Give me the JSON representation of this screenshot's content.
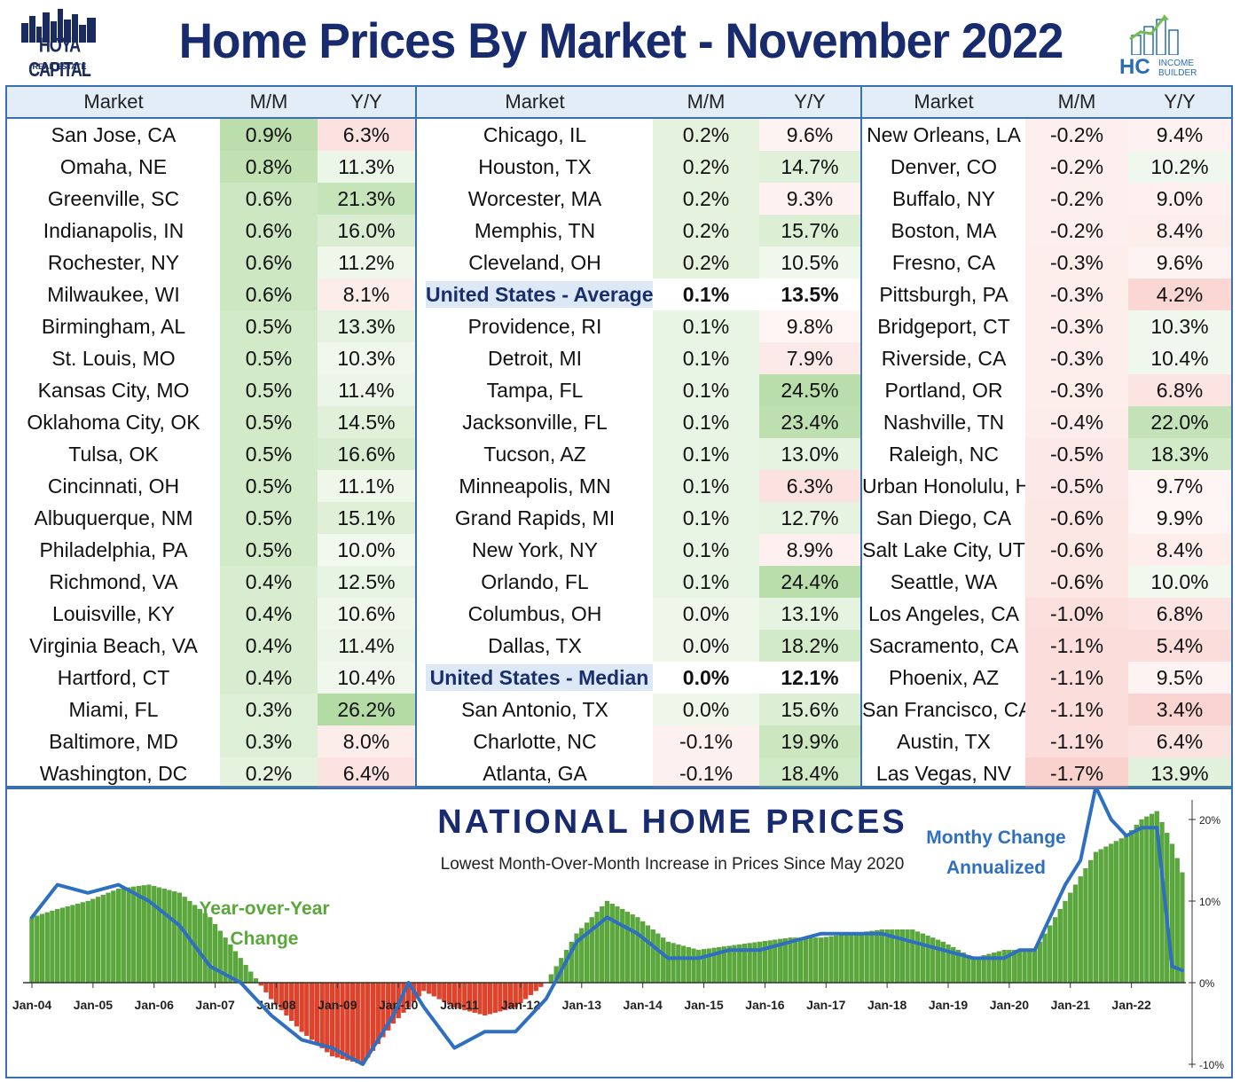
{
  "header": {
    "title": "Home Prices By Market - November 2022",
    "left_logo": {
      "name": "HOYA CAPITAL",
      "sub": "REAL ESTATE"
    },
    "right_logo": {
      "mark": "HC",
      "text_line1": "INCOME",
      "text_line2": "BUILDER"
    }
  },
  "colors": {
    "title": "#172b6e",
    "border": "#3a6fb0",
    "header_bg": "#e3edf8",
    "positive": "#5aa83a",
    "negative": "#e0422a",
    "line": "#2e6fc1"
  },
  "table": {
    "columns": [
      "Market",
      "M/M",
      "Y/Y"
    ],
    "groups": [
      {
        "rows": [
          {
            "market": "San Jose, CA",
            "mm": "0.9%",
            "yy": "6.3%"
          },
          {
            "market": "Omaha, NE",
            "mm": "0.8%",
            "yy": "11.3%"
          },
          {
            "market": "Greenville, SC",
            "mm": "0.6%",
            "yy": "21.3%"
          },
          {
            "market": "Indianapolis, IN",
            "mm": "0.6%",
            "yy": "16.0%"
          },
          {
            "market": "Rochester, NY",
            "mm": "0.6%",
            "yy": "11.2%"
          },
          {
            "market": "Milwaukee, WI",
            "mm": "0.6%",
            "yy": "8.1%"
          },
          {
            "market": "Birmingham, AL",
            "mm": "0.5%",
            "yy": "13.3%"
          },
          {
            "market": "St. Louis, MO",
            "mm": "0.5%",
            "yy": "10.3%"
          },
          {
            "market": "Kansas City, MO",
            "mm": "0.5%",
            "yy": "11.4%"
          },
          {
            "market": "Oklahoma City, OK",
            "mm": "0.5%",
            "yy": "14.5%"
          },
          {
            "market": "Tulsa, OK",
            "mm": "0.5%",
            "yy": "16.6%"
          },
          {
            "market": "Cincinnati, OH",
            "mm": "0.5%",
            "yy": "11.1%"
          },
          {
            "market": "Albuquerque, NM",
            "mm": "0.5%",
            "yy": "15.1%"
          },
          {
            "market": "Philadelphia, PA",
            "mm": "0.5%",
            "yy": "10.0%"
          },
          {
            "market": "Richmond, VA",
            "mm": "0.4%",
            "yy": "12.5%"
          },
          {
            "market": "Louisville, KY",
            "mm": "0.4%",
            "yy": "10.6%"
          },
          {
            "market": "Virginia Beach, VA",
            "mm": "0.4%",
            "yy": "11.4%"
          },
          {
            "market": "Hartford, CT",
            "mm": "0.4%",
            "yy": "10.4%"
          },
          {
            "market": "Miami, FL",
            "mm": "0.3%",
            "yy": "26.2%"
          },
          {
            "market": "Baltimore, MD",
            "mm": "0.3%",
            "yy": "8.0%"
          },
          {
            "market": "Washington, DC",
            "mm": "0.2%",
            "yy": "6.4%"
          }
        ]
      },
      {
        "rows": [
          {
            "market": "Chicago, IL",
            "mm": "0.2%",
            "yy": "9.6%"
          },
          {
            "market": "Houston, TX",
            "mm": "0.2%",
            "yy": "14.7%"
          },
          {
            "market": "Worcester, MA",
            "mm": "0.2%",
            "yy": "9.3%"
          },
          {
            "market": "Memphis, TN",
            "mm": "0.2%",
            "yy": "15.7%"
          },
          {
            "market": "Cleveland, OH",
            "mm": "0.2%",
            "yy": "10.5%"
          },
          {
            "market": "United States - Average",
            "mm": "0.1%",
            "yy": "13.5%",
            "highlight": true
          },
          {
            "market": "Providence, RI",
            "mm": "0.1%",
            "yy": "9.8%"
          },
          {
            "market": "Detroit, MI",
            "mm": "0.1%",
            "yy": "7.9%"
          },
          {
            "market": "Tampa, FL",
            "mm": "0.1%",
            "yy": "24.5%"
          },
          {
            "market": "Jacksonville, FL",
            "mm": "0.1%",
            "yy": "23.4%"
          },
          {
            "market": "Tucson, AZ",
            "mm": "0.1%",
            "yy": "13.0%"
          },
          {
            "market": "Minneapolis, MN",
            "mm": "0.1%",
            "yy": "6.3%"
          },
          {
            "market": "Grand Rapids, MI",
            "mm": "0.1%",
            "yy": "12.7%"
          },
          {
            "market": "New York, NY",
            "mm": "0.1%",
            "yy": "8.9%"
          },
          {
            "market": "Orlando, FL",
            "mm": "0.1%",
            "yy": "24.4%"
          },
          {
            "market": "Columbus, OH",
            "mm": "0.0%",
            "yy": "13.1%"
          },
          {
            "market": "Dallas, TX",
            "mm": "0.0%",
            "yy": "18.2%"
          },
          {
            "market": "United States - Median",
            "mm": "0.0%",
            "yy": "12.1%",
            "highlight": true
          },
          {
            "market": "San Antonio, TX",
            "mm": "0.0%",
            "yy": "15.6%"
          },
          {
            "market": "Charlotte, NC",
            "mm": "-0.1%",
            "yy": "19.9%"
          },
          {
            "market": "Atlanta, GA",
            "mm": "-0.1%",
            "yy": "18.4%"
          }
        ]
      },
      {
        "rows": [
          {
            "market": "New Orleans, LA",
            "mm": "-0.2%",
            "yy": "9.4%"
          },
          {
            "market": "Denver, CO",
            "mm": "-0.2%",
            "yy": "10.2%"
          },
          {
            "market": "Buffalo, NY",
            "mm": "-0.2%",
            "yy": "9.0%"
          },
          {
            "market": "Boston, MA",
            "mm": "-0.2%",
            "yy": "8.4%"
          },
          {
            "market": "Fresno, CA",
            "mm": "-0.3%",
            "yy": "9.6%"
          },
          {
            "market": "Pittsburgh, PA",
            "mm": "-0.3%",
            "yy": "4.2%"
          },
          {
            "market": "Bridgeport, CT",
            "mm": "-0.3%",
            "yy": "10.3%"
          },
          {
            "market": "Riverside, CA",
            "mm": "-0.3%",
            "yy": "10.4%"
          },
          {
            "market": "Portland, OR",
            "mm": "-0.3%",
            "yy": "6.8%"
          },
          {
            "market": "Nashville, TN",
            "mm": "-0.4%",
            "yy": "22.0%"
          },
          {
            "market": "Raleigh, NC",
            "mm": "-0.5%",
            "yy": "18.3%"
          },
          {
            "market": "Urban Honolulu, HI",
            "mm": "-0.5%",
            "yy": "9.7%"
          },
          {
            "market": "San Diego, CA",
            "mm": "-0.6%",
            "yy": "9.9%"
          },
          {
            "market": "Salt Lake City, UT",
            "mm": "-0.6%",
            "yy": "8.4%"
          },
          {
            "market": "Seattle, WA",
            "mm": "-0.6%",
            "yy": "10.0%"
          },
          {
            "market": "Los Angeles, CA",
            "mm": "-1.0%",
            "yy": "6.8%"
          },
          {
            "market": "Sacramento, CA",
            "mm": "-1.1%",
            "yy": "5.4%"
          },
          {
            "market": "Phoenix, AZ",
            "mm": "-1.1%",
            "yy": "9.5%"
          },
          {
            "market": "San Francisco, CA",
            "mm": "-1.1%",
            "yy": "3.4%"
          },
          {
            "market": "Austin, TX",
            "mm": "-1.1%",
            "yy": "6.4%"
          },
          {
            "market": "Las Vegas, NV",
            "mm": "-1.7%",
            "yy": "13.9%"
          }
        ]
      }
    ]
  },
  "chart_data": {
    "type": "bar",
    "title": "NATIONAL HOME PRICES",
    "subtitle": "Lowest Month-Over-Month Increase in Prices Since May 2020",
    "annotations": [
      "Year-over-Year Change",
      "Monthy Change Annualized"
    ],
    "x_tick_labels": [
      "Jan-04",
      "Jan-05",
      "Jan-06",
      "Jan-07",
      "Jan-08",
      "Jan-09",
      "Jan-10",
      "Jan-11",
      "Jan-12",
      "Jan-13",
      "Jan-14",
      "Jan-15",
      "Jan-16",
      "Jan-17",
      "Jan-18",
      "Jan-19",
      "Jan-20",
      "Jan-21",
      "Jan-22"
    ],
    "y_ticks": [
      20,
      10,
      0,
      -10
    ],
    "y_tick_labels": [
      "20%",
      "10%",
      "0%",
      "-10%"
    ],
    "ylim": [
      -10,
      22
    ],
    "grid": false,
    "series": [
      {
        "kind": "bar",
        "x": [
          "2004-01",
          "2004-06",
          "2004-12",
          "2005-06",
          "2005-12",
          "2006-06",
          "2006-12",
          "2007-06",
          "2007-12",
          "2008-06",
          "2008-12",
          "2009-06",
          "2009-12",
          "2010-06",
          "2010-12",
          "2011-06",
          "2011-12",
          "2012-06",
          "2012-12",
          "2013-06",
          "2013-12",
          "2014-06",
          "2014-12",
          "2015-06",
          "2015-12",
          "2016-06",
          "2016-12",
          "2017-06",
          "2017-12",
          "2018-06",
          "2018-12",
          "2019-06",
          "2019-12",
          "2020-06",
          "2020-12",
          "2021-06",
          "2021-12",
          "2022-03",
          "2022-06",
          "2022-09",
          "2022-11"
        ],
        "values": [
          8,
          9,
          10,
          11.5,
          12,
          11,
          8,
          3,
          -2,
          -6,
          -9,
          -10,
          -5,
          -1,
          -3,
          -4,
          -3,
          0,
          6,
          10,
          8,
          5,
          4,
          4.5,
          5,
          5.5,
          5.5,
          6,
          6.5,
          6.5,
          5,
          3,
          4,
          4,
          10,
          16,
          18,
          20,
          21,
          17,
          13.5
        ]
      },
      {
        "kind": "line",
        "x": [
          "2004-01",
          "2004-06",
          "2004-12",
          "2005-06",
          "2005-12",
          "2006-06",
          "2006-12",
          "2007-06",
          "2007-12",
          "2008-06",
          "2008-12",
          "2009-06",
          "2009-12",
          "2010-03",
          "2010-06",
          "2010-12",
          "2011-06",
          "2011-12",
          "2012-06",
          "2012-12",
          "2013-06",
          "2013-12",
          "2014-06",
          "2014-12",
          "2015-06",
          "2015-12",
          "2016-06",
          "2016-12",
          "2017-06",
          "2017-12",
          "2018-06",
          "2018-12",
          "2019-06",
          "2019-12",
          "2020-03",
          "2020-06",
          "2020-12",
          "2021-03",
          "2021-06",
          "2021-09",
          "2021-12",
          "2022-03",
          "2022-06",
          "2022-09",
          "2022-11"
        ],
        "values": [
          8,
          12,
          11,
          12,
          10,
          7,
          2,
          0,
          -4,
          -7,
          -8,
          -10,
          -4,
          0,
          -3,
          -8,
          -6,
          -6,
          -2,
          5,
          8,
          6,
          3,
          3,
          4,
          4,
          5,
          6,
          6,
          6,
          5,
          4,
          3,
          3,
          4,
          4,
          12,
          15,
          24,
          20,
          18,
          19,
          19,
          2,
          1.5
        ]
      }
    ]
  }
}
